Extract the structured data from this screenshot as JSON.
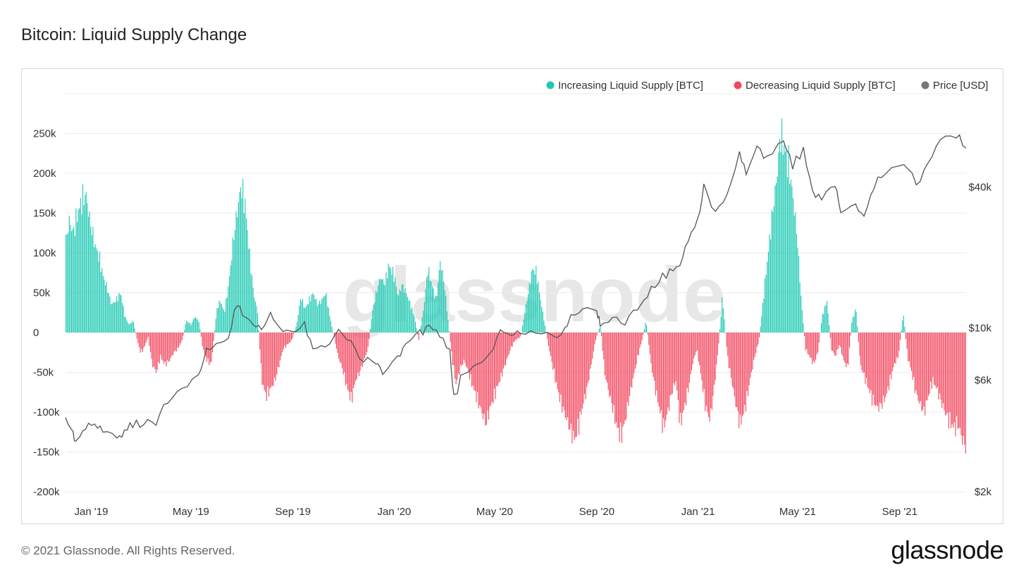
{
  "title": "Bitcoin: Liquid Supply Change",
  "footer": "© 2021 Glassnode. All Rights Reserved.",
  "brand": "glassnode",
  "watermark": "glassnode",
  "colors": {
    "increase": "#1ec9b4",
    "decrease": "#f2485e",
    "price": "#555555",
    "grid": "#ececec"
  },
  "chart_data": {
    "type": "bar",
    "title": "Bitcoin: Liquid Supply Change",
    "legend": [
      {
        "name": "Increasing Liquid Supply [BTC]",
        "color": "#1ec9b4"
      },
      {
        "name": "Decreasing Liquid Supply [BTC]",
        "color": "#f2485e"
      },
      {
        "name": "Price [USD]",
        "color": "#777777"
      }
    ],
    "legend_position": "top-right",
    "x_range": [
      "2018-12-01",
      "2021-11-20"
    ],
    "x_ticks": [
      {
        "date": "2019-01-01",
        "label": "Jan '19"
      },
      {
        "date": "2019-05-01",
        "label": "May '19"
      },
      {
        "date": "2019-09-01",
        "label": "Sep '19"
      },
      {
        "date": "2020-01-01",
        "label": "Jan '20"
      },
      {
        "date": "2020-05-01",
        "label": "May '20"
      },
      {
        "date": "2020-09-01",
        "label": "Sep '20"
      },
      {
        "date": "2021-01-01",
        "label": "Jan '21"
      },
      {
        "date": "2021-05-01",
        "label": "May '21"
      },
      {
        "date": "2021-09-01",
        "label": "Sep '21"
      }
    ],
    "y_left": {
      "ylim": [
        -200000,
        300000
      ],
      "ticks": [
        {
          "value": 250000,
          "label": "250k"
        },
        {
          "value": 200000,
          "label": "200k"
        },
        {
          "value": 150000,
          "label": "150k"
        },
        {
          "value": 100000,
          "label": "100k"
        },
        {
          "value": 50000,
          "label": "50k"
        },
        {
          "value": 0,
          "label": "0"
        },
        {
          "value": -50000,
          "label": "-50k"
        },
        {
          "value": -100000,
          "label": "-100k"
        },
        {
          "value": -150000,
          "label": "-150k"
        },
        {
          "value": -200000,
          "label": "-200k"
        }
      ]
    },
    "y_right": {
      "scale": "log",
      "ylim": [
        2000,
        100000
      ],
      "ticks": [
        {
          "value": 40000,
          "label": "$40k"
        },
        {
          "value": 10000,
          "label": "$10k"
        },
        {
          "value": 6000,
          "label": "$6k"
        },
        {
          "value": 2000,
          "label": "$2k"
        }
      ]
    },
    "liquid_supply_change": [
      [
        "2018-12-01",
        115000
      ],
      [
        "2018-12-05",
        140000
      ],
      [
        "2018-12-10",
        125000
      ],
      [
        "2018-12-15",
        150000
      ],
      [
        "2018-12-20",
        165000
      ],
      [
        "2018-12-25",
        175000
      ],
      [
        "2018-12-30",
        140000
      ],
      [
        "2019-01-05",
        110000
      ],
      [
        "2019-01-10",
        95000
      ],
      [
        "2019-01-15",
        70000
      ],
      [
        "2019-01-20",
        55000
      ],
      [
        "2019-01-25",
        35000
      ],
      [
        "2019-01-30",
        40000
      ],
      [
        "2019-02-05",
        50000
      ],
      [
        "2019-02-10",
        20000
      ],
      [
        "2019-02-15",
        10000
      ],
      [
        "2019-02-20",
        15000
      ],
      [
        "2019-02-25",
        -10000
      ],
      [
        "2019-03-01",
        -25000
      ],
      [
        "2019-03-05",
        -20000
      ],
      [
        "2019-03-10",
        -5000
      ],
      [
        "2019-03-15",
        -40000
      ],
      [
        "2019-03-20",
        -50000
      ],
      [
        "2019-03-25",
        -30000
      ],
      [
        "2019-03-30",
        -40000
      ],
      [
        "2019-04-05",
        -35000
      ],
      [
        "2019-04-10",
        -25000
      ],
      [
        "2019-04-15",
        -20000
      ],
      [
        "2019-04-20",
        -10000
      ],
      [
        "2019-04-25",
        15000
      ],
      [
        "2019-05-01",
        10000
      ],
      [
        "2019-05-05",
        20000
      ],
      [
        "2019-05-10",
        15000
      ],
      [
        "2019-05-15",
        -20000
      ],
      [
        "2019-05-20",
        -35000
      ],
      [
        "2019-05-25",
        -40000
      ],
      [
        "2019-06-01",
        30000
      ],
      [
        "2019-06-05",
        40000
      ],
      [
        "2019-06-10",
        25000
      ],
      [
        "2019-06-15",
        60000
      ],
      [
        "2019-06-20",
        110000
      ],
      [
        "2019-06-25",
        150000
      ],
      [
        "2019-06-30",
        185000
      ],
      [
        "2019-07-05",
        160000
      ],
      [
        "2019-07-10",
        100000
      ],
      [
        "2019-07-15",
        50000
      ],
      [
        "2019-07-20",
        25000
      ],
      [
        "2019-07-25",
        -60000
      ],
      [
        "2019-07-30",
        -80000
      ],
      [
        "2019-08-05",
        -70000
      ],
      [
        "2019-08-10",
        -60000
      ],
      [
        "2019-08-15",
        -40000
      ],
      [
        "2019-08-20",
        -20000
      ],
      [
        "2019-08-25",
        -15000
      ],
      [
        "2019-08-30",
        -10000
      ],
      [
        "2019-09-05",
        10000
      ],
      [
        "2019-09-10",
        45000
      ],
      [
        "2019-09-15",
        30000
      ],
      [
        "2019-09-20",
        40000
      ],
      [
        "2019-09-25",
        50000
      ],
      [
        "2019-09-30",
        35000
      ],
      [
        "2019-10-05",
        40000
      ],
      [
        "2019-10-10",
        50000
      ],
      [
        "2019-10-15",
        20000
      ],
      [
        "2019-10-20",
        -5000
      ],
      [
        "2019-10-25",
        -30000
      ],
      [
        "2019-10-30",
        -45000
      ],
      [
        "2019-11-05",
        -70000
      ],
      [
        "2019-11-10",
        -85000
      ],
      [
        "2019-11-15",
        -60000
      ],
      [
        "2019-11-20",
        -50000
      ],
      [
        "2019-11-25",
        -35000
      ],
      [
        "2019-11-30",
        -20000
      ],
      [
        "2019-12-05",
        25000
      ],
      [
        "2019-12-10",
        50000
      ],
      [
        "2019-12-15",
        70000
      ],
      [
        "2019-12-20",
        60000
      ],
      [
        "2019-12-25",
        85000
      ],
      [
        "2020-01-01",
        70000
      ],
      [
        "2020-01-05",
        45000
      ],
      [
        "2020-01-10",
        60000
      ],
      [
        "2020-01-15",
        50000
      ],
      [
        "2020-01-20",
        35000
      ],
      [
        "2020-01-25",
        20000
      ],
      [
        "2020-01-30",
        -10000
      ],
      [
        "2020-02-05",
        30000
      ],
      [
        "2020-02-10",
        80000
      ],
      [
        "2020-02-15",
        60000
      ],
      [
        "2020-02-20",
        40000
      ],
      [
        "2020-02-25",
        90000
      ],
      [
        "2020-03-01",
        60000
      ],
      [
        "2020-03-05",
        20000
      ],
      [
        "2020-03-10",
        -30000
      ],
      [
        "2020-03-15",
        -65000
      ],
      [
        "2020-03-20",
        -45000
      ],
      [
        "2020-03-25",
        -35000
      ],
      [
        "2020-03-30",
        -50000
      ],
      [
        "2020-04-05",
        -70000
      ],
      [
        "2020-04-10",
        -85000
      ],
      [
        "2020-04-15",
        -100000
      ],
      [
        "2020-04-20",
        -115000
      ],
      [
        "2020-04-25",
        -95000
      ],
      [
        "2020-04-30",
        -80000
      ],
      [
        "2020-05-05",
        -65000
      ],
      [
        "2020-05-10",
        -50000
      ],
      [
        "2020-05-15",
        -35000
      ],
      [
        "2020-05-20",
        -20000
      ],
      [
        "2020-05-25",
        -10000
      ],
      [
        "2020-06-01",
        -5000
      ],
      [
        "2020-06-05",
        20000
      ],
      [
        "2020-06-10",
        50000
      ],
      [
        "2020-06-15",
        80000
      ],
      [
        "2020-06-20",
        75000
      ],
      [
        "2020-06-25",
        40000
      ],
      [
        "2020-06-30",
        10000
      ],
      [
        "2020-07-05",
        -20000
      ],
      [
        "2020-07-10",
        -45000
      ],
      [
        "2020-07-15",
        -70000
      ],
      [
        "2020-07-20",
        -90000
      ],
      [
        "2020-07-25",
        -105000
      ],
      [
        "2020-07-30",
        -120000
      ],
      [
        "2020-08-05",
        -135000
      ],
      [
        "2020-08-10",
        -115000
      ],
      [
        "2020-08-15",
        -90000
      ],
      [
        "2020-08-20",
        -70000
      ],
      [
        "2020-08-25",
        -40000
      ],
      [
        "2020-08-30",
        -10000
      ],
      [
        "2020-09-05",
        10000
      ],
      [
        "2020-09-10",
        -50000
      ],
      [
        "2020-09-15",
        -75000
      ],
      [
        "2020-09-20",
        -95000
      ],
      [
        "2020-09-25",
        -120000
      ],
      [
        "2020-09-30",
        -130000
      ],
      [
        "2020-10-05",
        -110000
      ],
      [
        "2020-10-10",
        -80000
      ],
      [
        "2020-10-15",
        -55000
      ],
      [
        "2020-10-20",
        -30000
      ],
      [
        "2020-10-25",
        -10000
      ],
      [
        "2020-10-30",
        15000
      ],
      [
        "2020-11-05",
        -40000
      ],
      [
        "2020-11-10",
        -70000
      ],
      [
        "2020-11-15",
        -95000
      ],
      [
        "2020-11-20",
        -120000
      ],
      [
        "2020-11-25",
        -100000
      ],
      [
        "2020-11-30",
        -75000
      ],
      [
        "2020-12-05",
        -60000
      ],
      [
        "2020-12-10",
        -115000
      ],
      [
        "2020-12-15",
        -95000
      ],
      [
        "2020-12-20",
        -70000
      ],
      [
        "2020-12-25",
        -40000
      ],
      [
        "2020-12-30",
        -20000
      ],
      [
        "2021-01-05",
        -60000
      ],
      [
        "2021-01-10",
        -95000
      ],
      [
        "2021-01-15",
        -110000
      ],
      [
        "2021-01-20",
        -70000
      ],
      [
        "2021-01-25",
        -20000
      ],
      [
        "2021-01-30",
        45000
      ],
      [
        "2021-02-05",
        -30000
      ],
      [
        "2021-02-10",
        -60000
      ],
      [
        "2021-02-15",
        -90000
      ],
      [
        "2021-02-20",
        -115000
      ],
      [
        "2021-02-25",
        -100000
      ],
      [
        "2021-03-01",
        -80000
      ],
      [
        "2021-03-05",
        -55000
      ],
      [
        "2021-03-10",
        -30000
      ],
      [
        "2021-03-15",
        -10000
      ],
      [
        "2021-03-20",
        40000
      ],
      [
        "2021-03-25",
        90000
      ],
      [
        "2021-03-30",
        140000
      ],
      [
        "2021-04-05",
        190000
      ],
      [
        "2021-04-10",
        250000
      ],
      [
        "2021-04-15",
        230000
      ],
      [
        "2021-04-20",
        210000
      ],
      [
        "2021-04-25",
        170000
      ],
      [
        "2021-04-30",
        120000
      ],
      [
        "2021-05-05",
        40000
      ],
      [
        "2021-05-10",
        -20000
      ],
      [
        "2021-05-15",
        -30000
      ],
      [
        "2021-05-20",
        -40000
      ],
      [
        "2021-05-25",
        -25000
      ],
      [
        "2021-05-30",
        20000
      ],
      [
        "2021-06-05",
        40000
      ],
      [
        "2021-06-10",
        -20000
      ],
      [
        "2021-06-15",
        -30000
      ],
      [
        "2021-06-20",
        -15000
      ],
      [
        "2021-06-25",
        -35000
      ],
      [
        "2021-06-30",
        -45000
      ],
      [
        "2021-07-05",
        15000
      ],
      [
        "2021-07-10",
        30000
      ],
      [
        "2021-07-15",
        -40000
      ],
      [
        "2021-07-20",
        -55000
      ],
      [
        "2021-07-25",
        -70000
      ],
      [
        "2021-07-30",
        -85000
      ],
      [
        "2021-08-05",
        -95000
      ],
      [
        "2021-08-10",
        -90000
      ],
      [
        "2021-08-15",
        -80000
      ],
      [
        "2021-08-20",
        -60000
      ],
      [
        "2021-08-25",
        -40000
      ],
      [
        "2021-08-30",
        -30000
      ],
      [
        "2021-09-05",
        25000
      ],
      [
        "2021-09-10",
        -30000
      ],
      [
        "2021-09-15",
        -50000
      ],
      [
        "2021-09-20",
        -75000
      ],
      [
        "2021-09-25",
        -90000
      ],
      [
        "2021-09-30",
        -100000
      ],
      [
        "2021-10-05",
        -80000
      ],
      [
        "2021-10-10",
        -60000
      ],
      [
        "2021-10-15",
        -70000
      ],
      [
        "2021-10-20",
        -85000
      ],
      [
        "2021-10-25",
        -100000
      ],
      [
        "2021-10-30",
        -110000
      ],
      [
        "2021-11-05",
        -120000
      ],
      [
        "2021-11-10",
        -115000
      ],
      [
        "2021-11-15",
        -135000
      ],
      [
        "2021-11-20",
        -145000
      ]
    ],
    "price_usd": [
      [
        "2018-12-01",
        4100
      ],
      [
        "2018-12-10",
        3500
      ],
      [
        "2018-12-15",
        3250
      ],
      [
        "2018-12-25",
        3800
      ],
      [
        "2019-01-05",
        3900
      ],
      [
        "2019-01-15",
        3600
      ],
      [
        "2019-02-01",
        3450
      ],
      [
        "2019-02-10",
        3600
      ],
      [
        "2019-02-20",
        3900
      ],
      [
        "2019-03-05",
        3850
      ],
      [
        "2019-03-20",
        4000
      ],
      [
        "2019-04-03",
        4900
      ],
      [
        "2019-04-20",
        5300
      ],
      [
        "2019-05-10",
        6300
      ],
      [
        "2019-05-20",
        8000
      ],
      [
        "2019-06-01",
        8500
      ],
      [
        "2019-06-15",
        9000
      ],
      [
        "2019-06-26",
        13000
      ],
      [
        "2019-07-05",
        11000
      ],
      [
        "2019-07-15",
        10500
      ],
      [
        "2019-07-25",
        9800
      ],
      [
        "2019-08-05",
        11500
      ],
      [
        "2019-08-15",
        10200
      ],
      [
        "2019-08-30",
        9600
      ],
      [
        "2019-09-15",
        10300
      ],
      [
        "2019-09-25",
        8300
      ],
      [
        "2019-10-10",
        8400
      ],
      [
        "2019-10-26",
        9500
      ],
      [
        "2019-11-10",
        8800
      ],
      [
        "2019-11-25",
        7100
      ],
      [
        "2019-12-10",
        7300
      ],
      [
        "2019-12-18",
        6600
      ],
      [
        "2020-01-05",
        7400
      ],
      [
        "2020-01-15",
        8700
      ],
      [
        "2020-02-01",
        9400
      ],
      [
        "2020-02-12",
        10300
      ],
      [
        "2020-02-25",
        9300
      ],
      [
        "2020-03-08",
        8000
      ],
      [
        "2020-03-13",
        5000
      ],
      [
        "2020-03-25",
        6600
      ],
      [
        "2020-04-10",
        6900
      ],
      [
        "2020-04-25",
        7600
      ],
      [
        "2020-05-08",
        9800
      ],
      [
        "2020-05-20",
        9300
      ],
      [
        "2020-06-01",
        9700
      ],
      [
        "2020-06-20",
        9300
      ],
      [
        "2020-07-10",
        9200
      ],
      [
        "2020-07-25",
        9700
      ],
      [
        "2020-08-01",
        11300
      ],
      [
        "2020-08-15",
        11800
      ],
      [
        "2020-09-01",
        11900
      ],
      [
        "2020-09-05",
        10200
      ],
      [
        "2020-09-20",
        10900
      ],
      [
        "2020-10-05",
        10700
      ],
      [
        "2020-10-20",
        12000
      ],
      [
        "2020-11-01",
        13700
      ],
      [
        "2020-11-15",
        16000
      ],
      [
        "2020-11-28",
        17500
      ],
      [
        "2020-12-10",
        18400
      ],
      [
        "2020-12-20",
        23500
      ],
      [
        "2021-01-01",
        29300
      ],
      [
        "2021-01-08",
        40000
      ],
      [
        "2021-01-22",
        31000
      ],
      [
        "2021-02-05",
        37000
      ],
      [
        "2021-02-20",
        55000
      ],
      [
        "2021-02-28",
        45000
      ],
      [
        "2021-03-13",
        60000
      ],
      [
        "2021-03-25",
        52000
      ],
      [
        "2021-04-14",
        63500
      ],
      [
        "2021-04-25",
        49000
      ],
      [
        "2021-05-08",
        58000
      ],
      [
        "2021-05-19",
        38000
      ],
      [
        "2021-05-30",
        35500
      ],
      [
        "2021-06-15",
        40000
      ],
      [
        "2021-06-22",
        32000
      ],
      [
        "2021-07-10",
        33500
      ],
      [
        "2021-07-20",
        30000
      ],
      [
        "2021-08-01",
        40000
      ],
      [
        "2021-08-15",
        47000
      ],
      [
        "2021-09-06",
        52000
      ],
      [
        "2021-09-21",
        40500
      ],
      [
        "2021-10-05",
        50000
      ],
      [
        "2021-10-20",
        64000
      ],
      [
        "2021-11-08",
        67500
      ],
      [
        "2021-11-20",
        58500
      ]
    ]
  }
}
